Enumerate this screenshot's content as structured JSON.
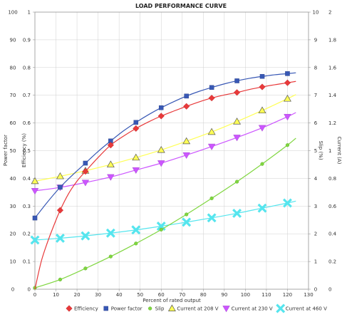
{
  "chart_data": {
    "type": "line",
    "title": "LOAD PERFORMANCE CURVE",
    "xlabel": "Percent of rated output",
    "left_ylabels": [
      "Power factor",
      "Efficiency (%)"
    ],
    "right_ylabels": [
      "Slip (%)",
      "Current (A)"
    ],
    "xlim": [
      0,
      130
    ],
    "ylim_left": [
      0,
      100
    ],
    "ylim_pf": [
      0,
      1
    ],
    "ylim_slip": [
      0,
      10
    ],
    "ylim_current": [
      0,
      2
    ],
    "x_ticks": [
      "0",
      "10",
      "20",
      "30",
      "40",
      "50",
      "60",
      "70",
      "80",
      "90",
      "100",
      "110",
      "120",
      "130"
    ],
    "y_ticks_left_outer": [
      "0",
      "10",
      "20",
      "30",
      "40",
      "50",
      "60",
      "70",
      "80",
      "90",
      "100"
    ],
    "y_ticks_left_inner": [
      "0",
      "0.1",
      "0.2",
      "0.3",
      "0.4",
      "0.5",
      "0.6",
      "0.7",
      "0.8",
      "0.9",
      "1"
    ],
    "y_ticks_right_inner": [
      "0",
      "1",
      "2",
      "3",
      "4",
      "5",
      "6",
      "7",
      "8",
      "9",
      "10"
    ],
    "y_ticks_right_outer": [
      "0",
      "0.2",
      "0.4",
      "0.6",
      "0.8",
      "1",
      "1.2",
      "1.4",
      "1.6",
      "1.8",
      "2"
    ],
    "grid": true,
    "legend_position": "bottom",
    "series": [
      {
        "name": "Efficiency",
        "axis": "left_outer",
        "color": "#e8393a",
        "marker": "diamond",
        "x": [
          12,
          24,
          36,
          48,
          60,
          72,
          84,
          96,
          108,
          120
        ],
        "y": [
          28.5,
          42.5,
          52.0,
          58.0,
          62.5,
          66.0,
          69.0,
          71.0,
          73.0,
          74.5
        ],
        "curve_x": [
          0,
          3,
          6,
          9,
          12,
          16,
          20,
          24,
          30,
          36,
          42,
          48,
          54,
          60,
          66,
          72,
          78,
          84,
          90,
          96,
          102,
          108,
          114,
          120,
          124
        ],
        "curve_y": [
          0,
          10,
          17,
          23,
          28.5,
          34.5,
          39,
          42.5,
          47.5,
          52,
          55.2,
          58,
          60.4,
          62.5,
          64.3,
          66,
          67.6,
          69,
          70.1,
          71,
          72.1,
          73,
          73.8,
          74.5,
          75
        ]
      },
      {
        "name": "Power factor",
        "axis": "left_inner",
        "color": "#3858b5",
        "marker": "square",
        "x": [
          0,
          12,
          24,
          36,
          48,
          60,
          72,
          84,
          96,
          108,
          120
        ],
        "y": [
          0.257,
          0.368,
          0.455,
          0.535,
          0.602,
          0.655,
          0.697,
          0.728,
          0.752,
          0.768,
          0.778
        ],
        "curve_x": [
          0,
          6,
          12,
          18,
          24,
          30,
          36,
          42,
          48,
          54,
          60,
          66,
          72,
          78,
          84,
          90,
          96,
          102,
          108,
          114,
          120,
          124
        ],
        "curve_y": [
          0.257,
          0.315,
          0.368,
          0.413,
          0.455,
          0.497,
          0.535,
          0.571,
          0.602,
          0.63,
          0.655,
          0.677,
          0.697,
          0.714,
          0.728,
          0.741,
          0.752,
          0.761,
          0.768,
          0.774,
          0.778,
          0.781
        ]
      },
      {
        "name": "Slip",
        "axis": "right_inner",
        "color": "#7fd63f",
        "marker": "circle",
        "x": [
          0,
          12,
          24,
          36,
          48,
          60,
          72,
          84,
          96,
          108,
          120
        ],
        "y": [
          0.05,
          0.35,
          0.75,
          1.18,
          1.65,
          2.15,
          2.7,
          3.28,
          3.88,
          4.52,
          5.2
        ],
        "curve_x": [
          0,
          12,
          24,
          36,
          48,
          60,
          72,
          84,
          96,
          108,
          120,
          124
        ],
        "curve_y": [
          0.05,
          0.35,
          0.75,
          1.18,
          1.65,
          2.15,
          2.7,
          3.28,
          3.88,
          4.52,
          5.2,
          5.45
        ]
      },
      {
        "name": "Current at 208 V",
        "axis": "right_outer",
        "color": "#ffff55",
        "marker": "triangle",
        "x": [
          0,
          12,
          24,
          36,
          48,
          60,
          72,
          84,
          96,
          108,
          120
        ],
        "y": [
          0.78,
          0.815,
          0.855,
          0.9,
          0.95,
          1.005,
          1.068,
          1.135,
          1.21,
          1.29,
          1.375
        ],
        "curve_x": [
          0,
          12,
          24,
          36,
          48,
          60,
          72,
          84,
          96,
          108,
          120,
          124
        ],
        "curve_y": [
          0.78,
          0.815,
          0.855,
          0.9,
          0.95,
          1.005,
          1.068,
          1.135,
          1.21,
          1.29,
          1.375,
          1.405
        ]
      },
      {
        "name": "Current at 230 V",
        "axis": "right_outer",
        "color": "#cc55ff",
        "marker": "triangle-down",
        "x": [
          0,
          12,
          24,
          36,
          48,
          60,
          72,
          84,
          96,
          108,
          120
        ],
        "y": [
          0.71,
          0.735,
          0.77,
          0.81,
          0.86,
          0.91,
          0.968,
          1.03,
          1.095,
          1.165,
          1.245
        ],
        "curve_x": [
          0,
          12,
          24,
          36,
          48,
          60,
          72,
          84,
          96,
          108,
          120,
          124
        ],
        "curve_y": [
          0.71,
          0.735,
          0.77,
          0.81,
          0.86,
          0.91,
          0.968,
          1.03,
          1.095,
          1.165,
          1.245,
          1.275
        ]
      },
      {
        "name": "Current at 460 V",
        "axis": "right_outer",
        "color": "#55e5ee",
        "marker": "x",
        "x": [
          0,
          12,
          24,
          36,
          48,
          60,
          72,
          84,
          96,
          108,
          120
        ],
        "y": [
          0.355,
          0.368,
          0.385,
          0.405,
          0.428,
          0.455,
          0.484,
          0.515,
          0.548,
          0.585,
          0.622
        ],
        "curve_x": [
          0,
          12,
          24,
          36,
          48,
          60,
          72,
          84,
          96,
          108,
          120,
          124
        ],
        "curve_y": [
          0.355,
          0.368,
          0.385,
          0.405,
          0.428,
          0.455,
          0.484,
          0.515,
          0.548,
          0.585,
          0.622,
          0.636
        ]
      }
    ]
  }
}
